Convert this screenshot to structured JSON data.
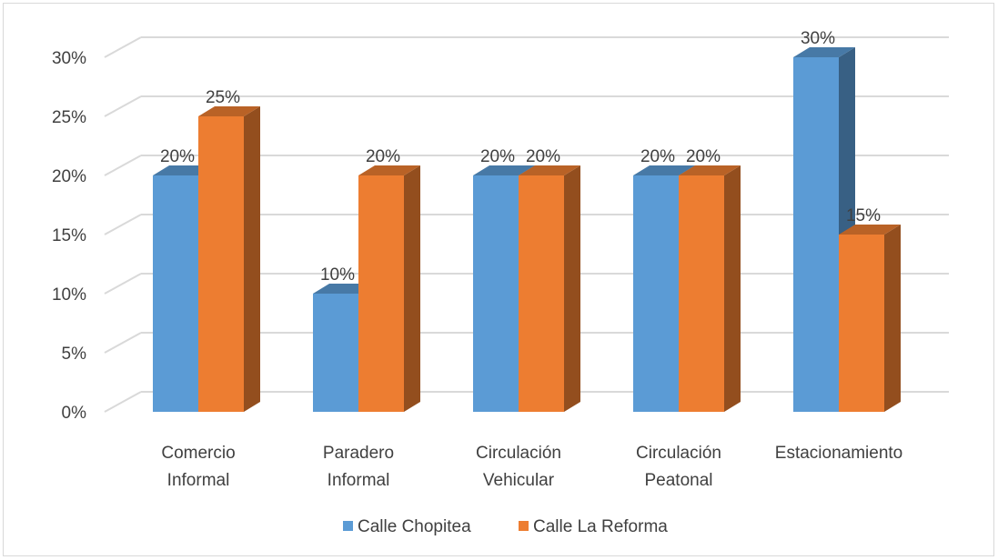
{
  "chart_data": {
    "type": "bar",
    "style": "3d-clustered-column",
    "categories": [
      [
        "Comercio",
        "Informal"
      ],
      [
        "Paradero",
        "Informal"
      ],
      [
        "Circulación",
        "Vehicular"
      ],
      [
        "Circulación",
        "Peatonal"
      ],
      [
        "Estacionamiento"
      ]
    ],
    "series": [
      {
        "name": "Calle Chopitea",
        "color": "#5b9bd5",
        "values": [
          20,
          10,
          20,
          20,
          30
        ]
      },
      {
        "name": "Calle La Reforma",
        "color": "#ed7d31",
        "values": [
          25,
          20,
          20,
          20,
          15
        ]
      }
    ],
    "data_labels": [
      [
        "20%",
        "10%",
        "20%",
        "20%",
        "30%"
      ],
      [
        "25%",
        "20%",
        "20%",
        "20%",
        "15%"
      ]
    ],
    "yticks": [
      "0%",
      "5%",
      "10%",
      "15%",
      "20%",
      "25%",
      "30%"
    ],
    "ylim": [
      0,
      30
    ],
    "grid": true,
    "legend_position": "bottom",
    "gridline_color": "#d9d9d9"
  }
}
